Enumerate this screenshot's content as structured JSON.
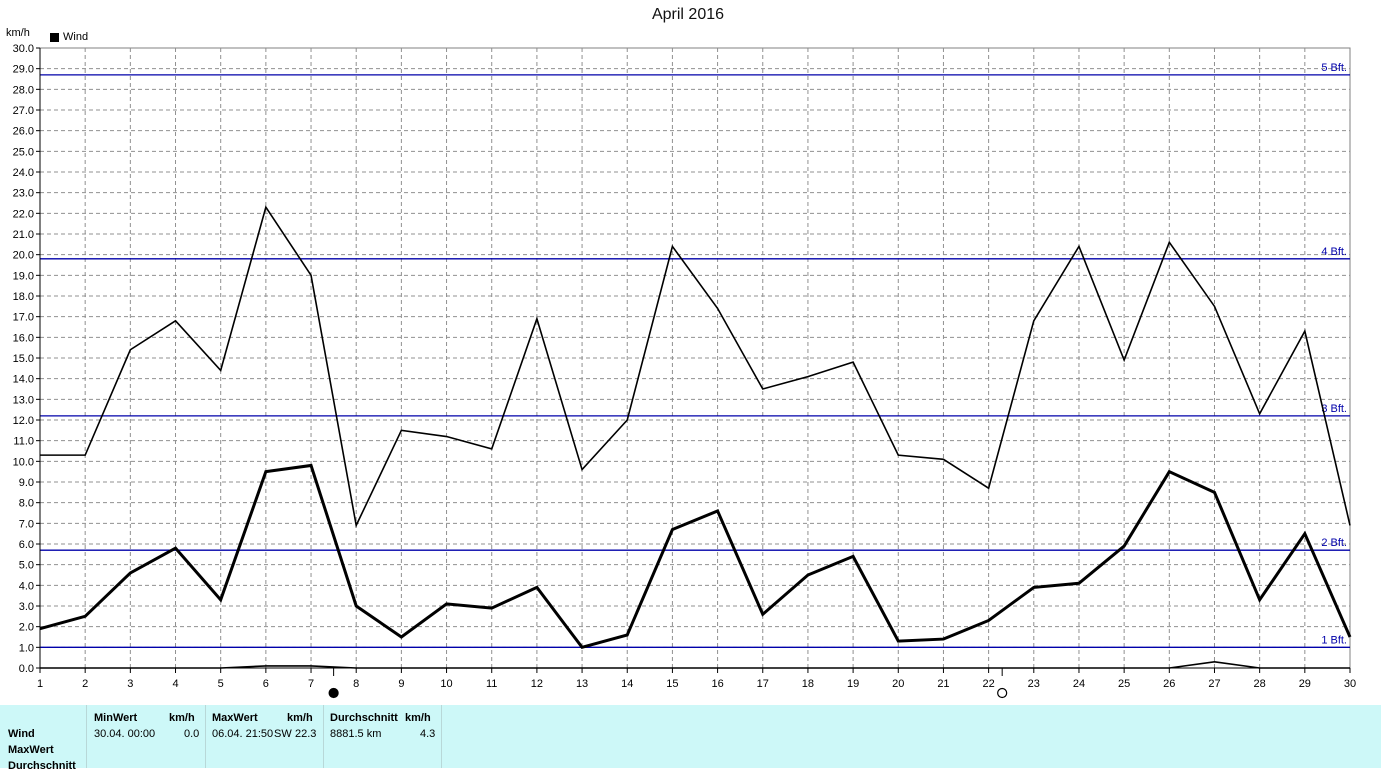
{
  "title": "April 2016",
  "unit_label": "km/h",
  "legend": {
    "label": "Wind",
    "color": "#000000"
  },
  "chart_data": {
    "type": "line",
    "title": "April 2016",
    "ylabel": "km/h",
    "xlabel": "",
    "xlim": [
      1,
      30
    ],
    "ylim": [
      0,
      30
    ],
    "grid": true,
    "legend_position": "top-left",
    "x": [
      1,
      2,
      3,
      4,
      5,
      6,
      7,
      8,
      9,
      10,
      11,
      12,
      13,
      14,
      15,
      16,
      17,
      18,
      19,
      20,
      21,
      22,
      23,
      24,
      25,
      26,
      27,
      28,
      29,
      30
    ],
    "x_tick_labels": [
      "1",
      "2",
      "3",
      "4",
      "5",
      "6",
      "7",
      "8",
      "9",
      "10",
      "11",
      "12",
      "13",
      "14",
      "15",
      "16",
      "17",
      "18",
      "19",
      "20",
      "21",
      "22",
      "23",
      "24",
      "25",
      "26",
      "27",
      "28",
      "29",
      "30"
    ],
    "y_tick_labels": [
      "0.0",
      "1.0",
      "2.0",
      "3.0",
      "4.0",
      "5.0",
      "6.0",
      "7.0",
      "8.0",
      "9.0",
      "10.0",
      "11.0",
      "12.0",
      "13.0",
      "14.0",
      "15.0",
      "16.0",
      "17.0",
      "18.0",
      "19.0",
      "20.0",
      "21.0",
      "22.0",
      "23.0",
      "24.0",
      "25.0",
      "26.0",
      "27.0",
      "28.0",
      "29.0",
      "30.0"
    ],
    "series": [
      {
        "name": "Wind",
        "color": "#000000",
        "values": [
          1.9,
          2.5,
          4.6,
          5.8,
          3.3,
          9.5,
          9.8,
          3.0,
          1.5,
          3.1,
          2.9,
          3.9,
          1.0,
          1.6,
          6.7,
          7.6,
          2.6,
          4.5,
          5.4,
          1.3,
          1.4,
          2.3,
          3.9,
          4.1,
          5.9,
          9.5,
          8.5,
          3.3,
          6.5,
          1.5
        ]
      },
      {
        "color": "#000000",
        "values": [
          10.3,
          10.3,
          15.4,
          16.8,
          14.4,
          22.3,
          19.0,
          6.9,
          11.5,
          11.2,
          10.6,
          16.9,
          9.6,
          12.0,
          20.4,
          17.4,
          13.5,
          14.1,
          14.8,
          10.3,
          10.1,
          8.7,
          16.8,
          20.4,
          14.9,
          20.6,
          17.5,
          12.3,
          16.3,
          6.9
        ]
      },
      {
        "color": "#000000",
        "values": [
          0,
          0,
          0,
          0,
          0,
          0.1,
          0.1,
          0,
          0,
          0,
          0,
          0,
          0,
          0,
          0,
          0,
          0,
          0,
          0,
          0,
          0,
          0,
          0,
          0,
          0,
          0,
          0.3,
          0,
          0,
          0
        ]
      }
    ],
    "reference_lines": [
      {
        "label": "1 Bft.",
        "value": 1.0,
        "color": "#0000aa"
      },
      {
        "label": "2 Bft.",
        "value": 5.7,
        "color": "#0000aa"
      },
      {
        "label": "3 Bft.",
        "value": 12.2,
        "color": "#0000aa"
      },
      {
        "label": "4 Bft.",
        "value": 19.8,
        "color": "#0000aa"
      },
      {
        "label": "5 Bft.",
        "value": 28.7,
        "color": "#0000aa"
      }
    ],
    "moon_markers": [
      {
        "x": 7.5,
        "phase": "new-moon-icon"
      },
      {
        "x": 22.3,
        "phase": "full-moon-icon"
      }
    ]
  },
  "stats_panel": {
    "background": "#cdf8f8",
    "row_labels": [
      "Wind",
      "MaxWert",
      "Durchschnitt"
    ],
    "min": {
      "header": "MinWert",
      "unit": "km/h",
      "when": "30.04.  00:00",
      "value": "0.0"
    },
    "max": {
      "header": "MaxWert",
      "unit": "km/h",
      "when": "06.04.  21:50",
      "dir": "SW",
      "value": "22.3"
    },
    "avg": {
      "header": "Durchschnitt",
      "unit": "km/h",
      "distance": "8881.5 km",
      "value": "4.3"
    }
  }
}
